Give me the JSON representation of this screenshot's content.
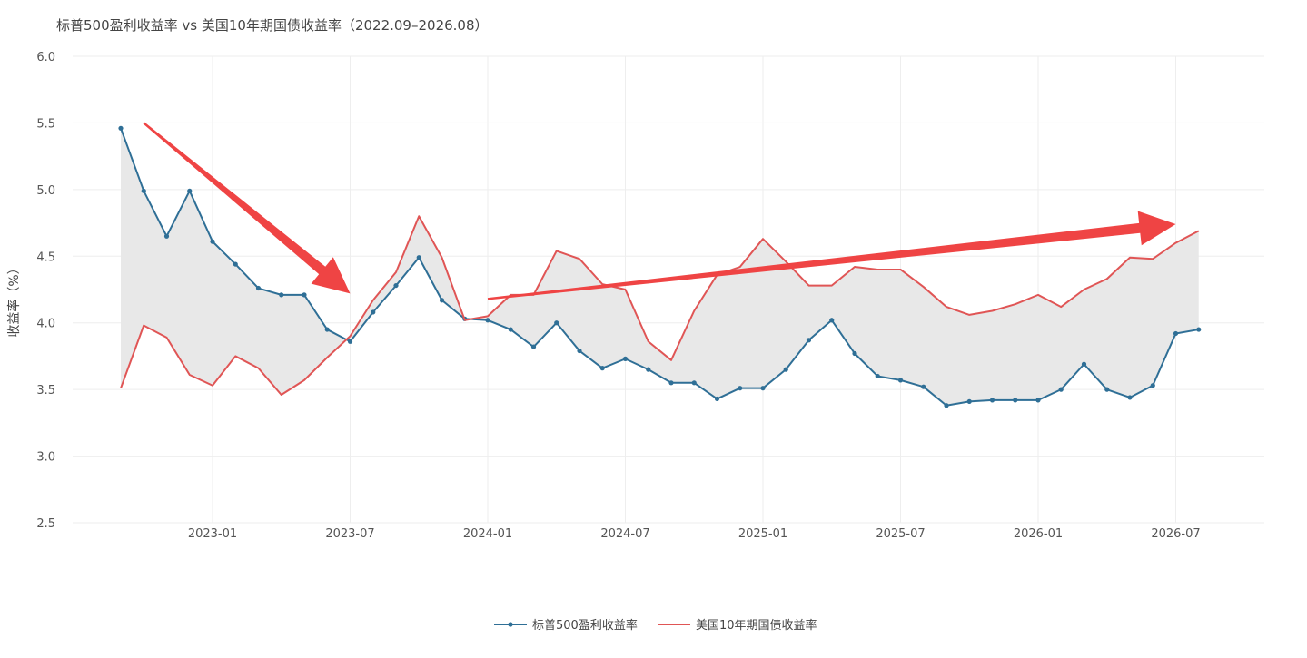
{
  "chart_data": {
    "type": "line",
    "title": "标普500盈利收益率 vs 美国10年期国债收益率（2022.09–2026.08）",
    "xlabel": "",
    "ylabel": "收益率（%）",
    "ylim": [
      2.5,
      6.0
    ],
    "yticks": [
      "2.5",
      "3.0",
      "3.5",
      "4.0",
      "4.5",
      "5.0",
      "5.5",
      "6.0"
    ],
    "xtick_labels": [
      "2023-01",
      "2023-07",
      "2024-01",
      "2024-07",
      "2025-01",
      "2025-07",
      "2026-01",
      "2026-07"
    ],
    "x": [
      "2022-09",
      "2022-10",
      "2022-11",
      "2022-12",
      "2023-01",
      "2023-02",
      "2023-03",
      "2023-04",
      "2023-05",
      "2023-06",
      "2023-07",
      "2023-08",
      "2023-09",
      "2023-10",
      "2023-11",
      "2023-12",
      "2024-01",
      "2024-02",
      "2024-03",
      "2024-04",
      "2024-05",
      "2024-06",
      "2024-07",
      "2024-08",
      "2024-09",
      "2024-10",
      "2024-11",
      "2024-12",
      "2025-01",
      "2025-02",
      "2025-03",
      "2025-04",
      "2025-05",
      "2025-06",
      "2025-07",
      "2025-08",
      "2025-09",
      "2025-10",
      "2025-11",
      "2025-12",
      "2026-01",
      "2026-02",
      "2026-03",
      "2026-04",
      "2026-05",
      "2026-06",
      "2026-07",
      "2026-08"
    ],
    "series": [
      {
        "name": "标普500盈利收益率",
        "color": "#2f6f96",
        "marker": "dot",
        "values": [
          5.46,
          4.99,
          4.65,
          4.99,
          4.61,
          4.44,
          4.26,
          4.21,
          4.21,
          3.95,
          3.86,
          4.08,
          4.28,
          4.49,
          4.17,
          4.03,
          4.02,
          3.95,
          3.82,
          4.0,
          3.79,
          3.66,
          3.73,
          3.65,
          3.55,
          3.55,
          3.43,
          3.51,
          3.51,
          3.65,
          3.87,
          4.02,
          3.77,
          3.6,
          3.57,
          3.52,
          3.38,
          3.41,
          3.42,
          3.42,
          3.42,
          3.5,
          3.69,
          3.5,
          3.44,
          3.53,
          3.92,
          3.95
        ]
      },
      {
        "name": "美国10年期国债收益率",
        "color": "#e05555",
        "marker": "none",
        "values": [
          3.51,
          3.98,
          3.89,
          3.61,
          3.53,
          3.75,
          3.66,
          3.46,
          3.57,
          3.74,
          3.9,
          4.17,
          4.38,
          4.8,
          4.49,
          4.02,
          4.05,
          4.21,
          4.21,
          4.54,
          4.48,
          4.29,
          4.25,
          3.86,
          3.72,
          4.09,
          4.36,
          4.42,
          4.63,
          4.46,
          4.28,
          4.28,
          4.42,
          4.4,
          4.4,
          4.27,
          4.12,
          4.06,
          4.09,
          4.14,
          4.21,
          4.12,
          4.25,
          4.33,
          4.49,
          4.48,
          4.6,
          4.69
        ]
      }
    ],
    "fill_between": {
      "color": "#e8e8e8"
    },
    "annotations": [
      {
        "type": "arrow",
        "color": "#ef4444",
        "from": {
          "x": "2022-10",
          "y": 5.5
        },
        "to": {
          "x": "2023-07",
          "y": 4.22
        }
      },
      {
        "type": "arrow",
        "color": "#ef4444",
        "from": {
          "x": "2024-01",
          "y": 4.18
        },
        "to": {
          "x": "2026-07",
          "y": 4.74
        }
      }
    ],
    "grid": true,
    "legend_position": "bottom-center"
  }
}
